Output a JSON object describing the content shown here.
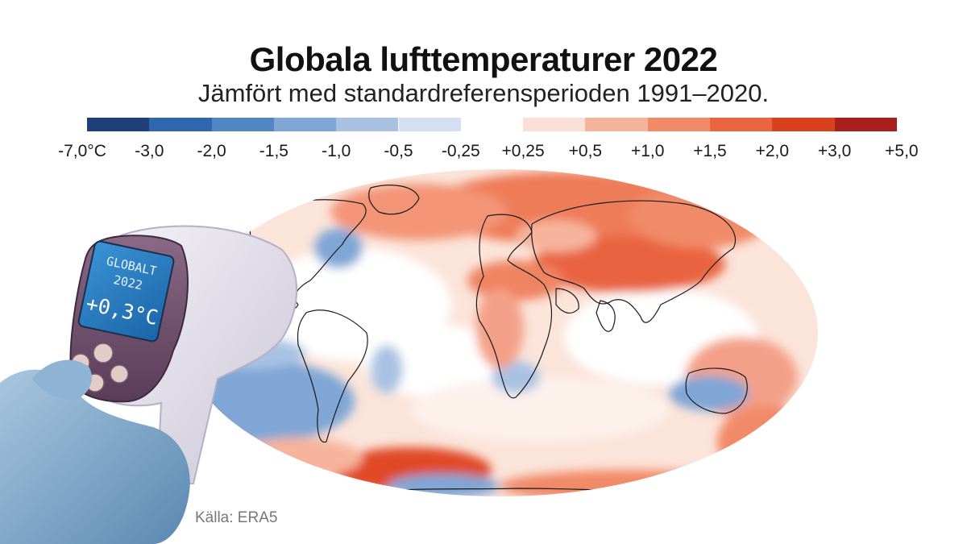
{
  "header": {
    "title": "Globala lufttemperaturer 2022",
    "subtitle": "Jämfört med standardreferensperioden 1991–2020."
  },
  "legend": {
    "ticks": [
      "-7,0°C",
      "-3,0",
      "-2,0",
      "-1,5",
      "-1,0",
      "-0,5",
      "-0,25",
      "+0,25",
      "+0,5",
      "+1,0",
      "+1,5",
      "+2,0",
      "+3,0",
      "+5,0"
    ],
    "colors": [
      "#1f3f7a",
      "#2e67ad",
      "#5186c4",
      "#7fa6d5",
      "#a9c2e3",
      "#d4e0f0",
      "#ffffff",
      "#fbe0d8",
      "#f7b49c",
      "#f18a67",
      "#e9643f",
      "#d8401e",
      "#a91f1b"
    ]
  },
  "thermometer": {
    "line1": "GLOBALT",
    "line2": "2022",
    "value": "+0,3°C"
  },
  "source": "Källa: ERA5"
}
